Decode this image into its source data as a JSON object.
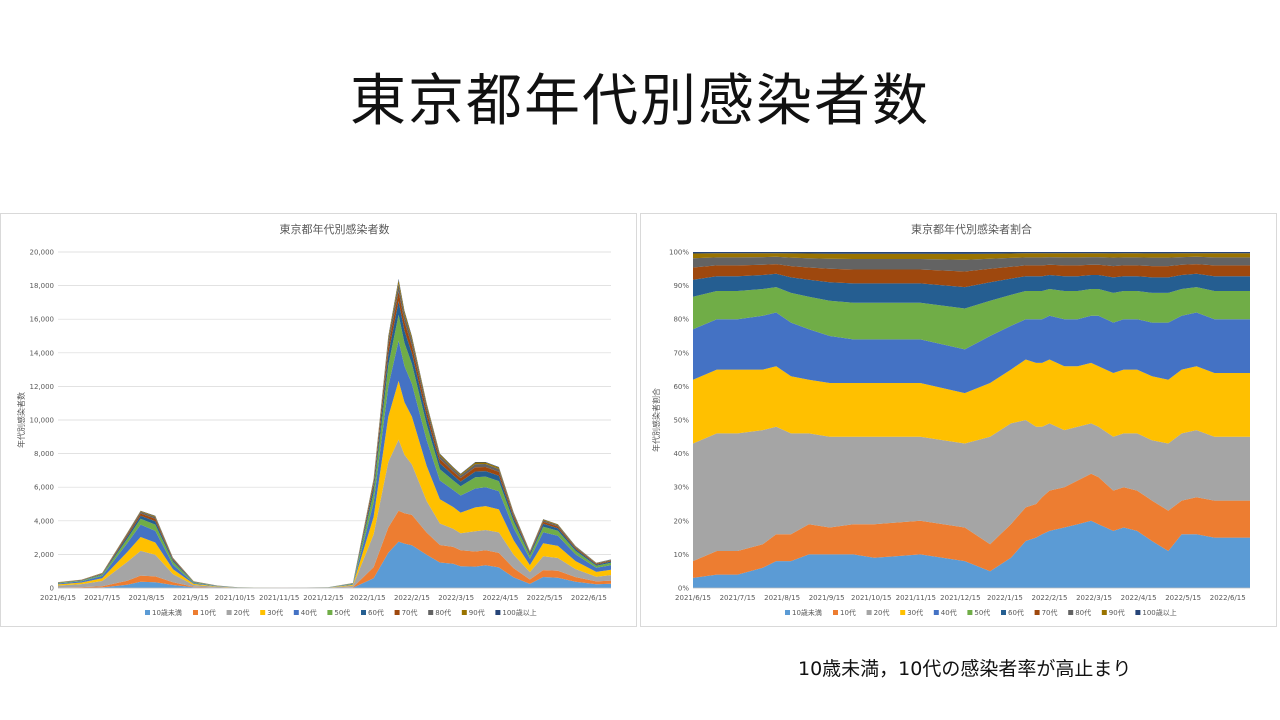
{
  "slide": {
    "title": "東京都年代別感染者数",
    "caption": "10歳未満，10代の感染者率が高止まり"
  },
  "legend": {
    "labels": [
      "10歳未満",
      "10代",
      "20代",
      "30代",
      "40代",
      "50代",
      "60代",
      "70代",
      "80代",
      "90代",
      "100歳以上"
    ],
    "colors": [
      "#5b9bd5",
      "#ed7d31",
      "#a5a5a5",
      "#ffc000",
      "#4472c4",
      "#70ad47",
      "#255e91",
      "#9e480e",
      "#636363",
      "#997300",
      "#264478"
    ]
  },
  "chart_data": [
    {
      "type": "area",
      "stacked": true,
      "title": "東京都年代別感染者数",
      "ylabel": "年代別感染者数",
      "ylim": [
        0,
        20000
      ],
      "yticks": [
        "0",
        "2,000",
        "4,000",
        "6,000",
        "8,000",
        "10,000",
        "12,000",
        "14,000",
        "16,000",
        "18,000",
        "20,000"
      ],
      "xticks": [
        "2021/6/15",
        "2021/7/15",
        "2021/8/15",
        "2021/9/15",
        "2021/10/15",
        "2021/11/15",
        "2021/12/15",
        "2022/1/15",
        "2022/2/15",
        "2022/3/15",
        "2022/4/15",
        "2022/5/15",
        "2022/6/15"
      ],
      "x": [
        "2021/6/15",
        "2021/7/1",
        "2021/7/15",
        "2021/8/1",
        "2021/8/10",
        "2021/8/20",
        "2021/9/1",
        "2021/9/15",
        "2021/10/1",
        "2021/10/15",
        "2021/11/15",
        "2021/12/15",
        "2022/1/1",
        "2022/1/15",
        "2022/1/25",
        "2022/2/1",
        "2022/2/5",
        "2022/2/10",
        "2022/2/20",
        "2022/3/1",
        "2022/3/10",
        "2022/3/15",
        "2022/3/25",
        "2022/4/1",
        "2022/4/10",
        "2022/4/20",
        "2022/5/1",
        "2022/5/10",
        "2022/5/20",
        "2022/6/1",
        "2022/6/15",
        "2022/6/25"
      ],
      "totals": [
        350,
        500,
        900,
        3300,
        4600,
        4300,
        1800,
        400,
        150,
        40,
        20,
        40,
        300,
        6500,
        15000,
        18400,
        16500,
        15000,
        11000,
        8000,
        7200,
        6800,
        7500,
        7500,
        7200,
        4500,
        2200,
        4100,
        3800,
        2500,
        1500,
        1700
      ],
      "shares": [
        [
          0.03,
          0.04,
          0.04,
          0.06,
          0.08,
          0.08,
          0.1,
          0.1,
          0.1,
          0.09,
          0.1,
          0.08,
          0.05,
          0.09,
          0.14,
          0.15,
          0.16,
          0.17,
          0.18,
          0.19,
          0.2,
          0.19,
          0.17,
          0.18,
          0.17,
          0.14,
          0.11,
          0.16,
          0.16,
          0.15,
          0.15,
          0.15
        ],
        [
          0.05,
          0.07,
          0.07,
          0.07,
          0.08,
          0.08,
          0.09,
          0.08,
          0.09,
          0.1,
          0.1,
          0.1,
          0.08,
          0.1,
          0.1,
          0.1,
          0.11,
          0.12,
          0.12,
          0.13,
          0.14,
          0.14,
          0.12,
          0.12,
          0.12,
          0.12,
          0.12,
          0.1,
          0.11,
          0.11,
          0.11,
          0.11
        ],
        [
          0.35,
          0.35,
          0.35,
          0.34,
          0.32,
          0.3,
          0.27,
          0.27,
          0.26,
          0.26,
          0.25,
          0.25,
          0.32,
          0.3,
          0.26,
          0.23,
          0.21,
          0.2,
          0.17,
          0.16,
          0.15,
          0.15,
          0.16,
          0.16,
          0.17,
          0.18,
          0.2,
          0.2,
          0.2,
          0.19,
          0.19,
          0.19
        ],
        [
          0.19,
          0.19,
          0.19,
          0.18,
          0.18,
          0.17,
          0.16,
          0.16,
          0.16,
          0.16,
          0.16,
          0.15,
          0.16,
          0.16,
          0.18,
          0.19,
          0.19,
          0.19,
          0.19,
          0.18,
          0.18,
          0.18,
          0.19,
          0.19,
          0.19,
          0.19,
          0.19,
          0.19,
          0.19,
          0.19,
          0.19,
          0.19
        ],
        [
          0.15,
          0.15,
          0.15,
          0.16,
          0.16,
          0.16,
          0.15,
          0.14,
          0.13,
          0.13,
          0.13,
          0.13,
          0.14,
          0.13,
          0.12,
          0.13,
          0.13,
          0.13,
          0.14,
          0.14,
          0.14,
          0.15,
          0.15,
          0.15,
          0.15,
          0.16,
          0.17,
          0.16,
          0.16,
          0.16,
          0.16,
          0.16
        ]
      ],
      "shares_note": "",
      "legend_position": "bottom",
      "grid": true
    },
    {
      "type": "area",
      "stacked": true,
      "normalized": true,
      "title": "東京都年代別感染者割合",
      "ylabel": "年代別感染者割合",
      "ylim": [
        0,
        100
      ],
      "yticks": [
        "0%",
        "10%",
        "20%",
        "30%",
        "40%",
        "50%",
        "60%",
        "70%",
        "80%",
        "90%",
        "100%"
      ],
      "xticks": [
        "2021/6/15",
        "2021/7/15",
        "2021/8/15",
        "2021/9/15",
        "2021/10/15",
        "2021/11/15",
        "2021/12/15",
        "2022/1/15",
        "2022/2/15",
        "2022/3/15",
        "2022/4/15",
        "2022/5/15",
        "2022/6/15"
      ],
      "legend_position": "bottom",
      "grid": false
    }
  ]
}
